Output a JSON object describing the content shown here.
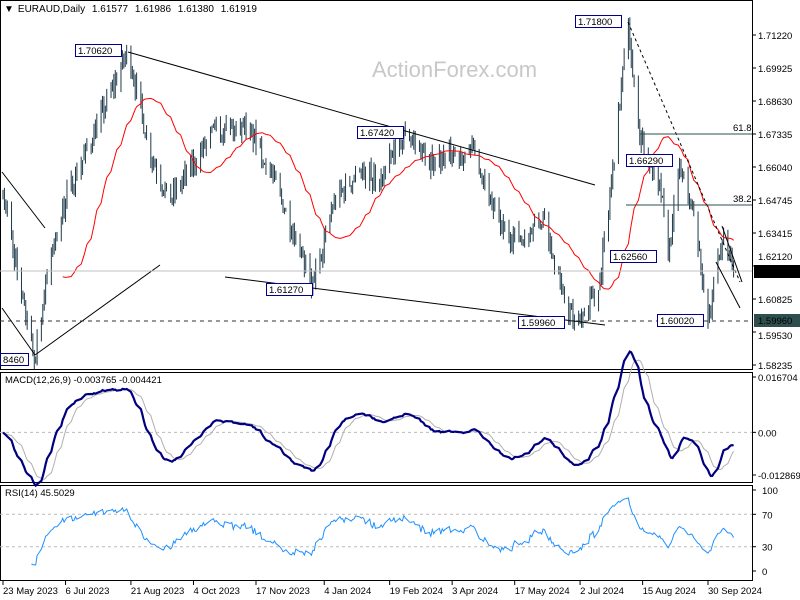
{
  "header": {
    "symbol": "EURAUD,Daily",
    "open": "1.61577",
    "high": "1.61986",
    "low": "1.61380",
    "close": "1.61919"
  },
  "watermark": "ActionForex.com",
  "colors": {
    "bars": "#1e3a4a",
    "ma": "#ff0000",
    "macd": "#000080",
    "signal": "#b0b0b0",
    "rsi": "#1e90ff",
    "price_tag_bg": "#000000",
    "level_tag_bg": "#2f4f4f"
  },
  "chart_data": [
    {
      "type": "ohlc",
      "title": "EURAUD,Daily",
      "ylim": [
        1.58235,
        1.7187
      ],
      "y_ticks": [
        "1.71220",
        "1.69925",
        "1.68630",
        "1.67335",
        "1.66040",
        "1.64745",
        "1.63415",
        "1.62120",
        "1.60825",
        "1.59530",
        "1.58235"
      ],
      "x_ticks": [
        "23 May 2023",
        "6 Jul 2023",
        "21 Aug 2023",
        "4 Oct 2023",
        "17 Nov 2023",
        "4 Jan 2024",
        "19 Feb 2024",
        "3 Apr 2024",
        "17 May 2024",
        "2 Jul 2024",
        "15 Aug 2024",
        "30 Sep 2024"
      ],
      "approx_close_path": [
        [
          "2023-05-23",
          1.6514
        ],
        [
          "2023-06-04",
          1.612
        ],
        [
          "2023-06-14",
          1.5846
        ],
        [
          "2023-06-25",
          1.6239
        ],
        [
          "2023-07-06",
          1.6475
        ],
        [
          "2023-07-30",
          1.6789
        ],
        [
          "2023-08-19",
          1.7062
        ],
        [
          "2023-09-03",
          1.667
        ],
        [
          "2023-09-17",
          1.647
        ],
        [
          "2023-10-01",
          1.659
        ],
        [
          "2023-10-19",
          1.675
        ],
        [
          "2023-11-13",
          1.675
        ],
        [
          "2023-11-27",
          1.659
        ],
        [
          "2023-12-18",
          1.628
        ],
        [
          "2023-12-26",
          1.6127
        ],
        [
          "2024-01-11",
          1.647
        ],
        [
          "2024-01-29",
          1.659
        ],
        [
          "2024-02-12",
          1.655
        ],
        [
          "2024-03-01",
          1.6742
        ],
        [
          "2024-03-18",
          1.663
        ],
        [
          "2024-04-19",
          1.667
        ],
        [
          "2024-05-07",
          1.636
        ],
        [
          "2024-05-21",
          1.632
        ],
        [
          "2024-06-07",
          1.64
        ],
        [
          "2024-06-21",
          1.608
        ],
        [
          "2024-06-28",
          1.5996
        ],
        [
          "2024-07-15",
          1.612
        ],
        [
          "2024-07-24",
          1.655
        ],
        [
          "2024-08-05",
          1.718
        ],
        [
          "2024-08-13",
          1.671
        ],
        [
          "2024-08-27",
          1.655
        ],
        [
          "2024-09-02",
          1.6256
        ],
        [
          "2024-09-10",
          1.661
        ],
        [
          "2024-09-21",
          1.64
        ],
        [
          "2024-09-30",
          1.6002
        ],
        [
          "2024-10-10",
          1.632
        ],
        [
          "2024-10-18",
          1.61919
        ]
      ],
      "moving_average": "red",
      "current_price_tag": "1.61919",
      "level_tag": "1.59960",
      "annotations": [
        "1.70620",
        "1.67420",
        "1.71800",
        "1.66290",
        "1.62560",
        "1.61270",
        "1.59960",
        "1.60020",
        "8460"
      ],
      "fib_labels": [
        "61.8",
        "38.2"
      ]
    },
    {
      "type": "line",
      "title": "MACD(12,26,9) -0.003765 -0.004421",
      "label": "MACD(12,26,9)",
      "values_text": [
        "-0.003765",
        "-0.004421"
      ],
      "ylim": [
        -0.012869,
        0.016704
      ],
      "y_ticks": [
        "0.016704",
        "0.00",
        "-0.012869"
      ]
    },
    {
      "type": "line",
      "title": "RSI(14) 45.5029",
      "label": "RSI(14)",
      "value_text": "45.5029",
      "ylim": [
        0,
        100
      ],
      "y_ticks": [
        "100",
        "70",
        "30",
        "0"
      ],
      "levels": [
        70,
        30
      ]
    }
  ]
}
